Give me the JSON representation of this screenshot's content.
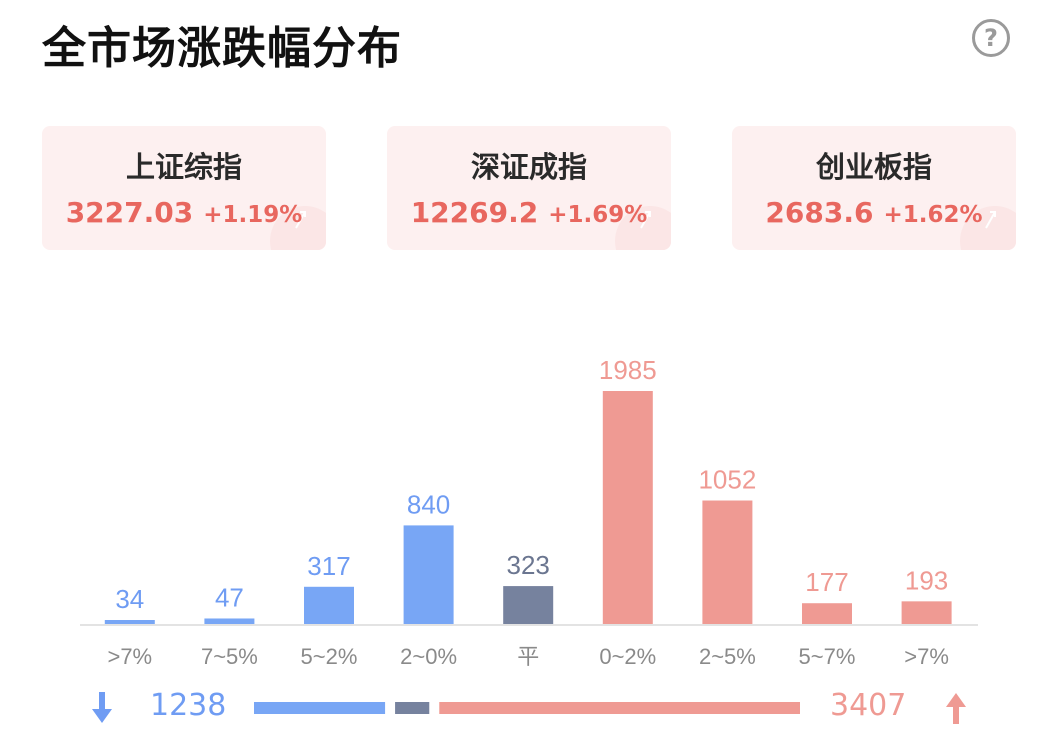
{
  "header": {
    "title": "全市场涨跌幅分布",
    "help_icon": "question-circle-icon",
    "help_glyph": "?"
  },
  "indices": [
    {
      "name": "上证综指",
      "price": "3227.03",
      "change": "+1.19%"
    },
    {
      "name": "深证成指",
      "price": "12269.2",
      "change": "+1.69%"
    },
    {
      "name": "创业板指",
      "price": "2683.6",
      "change": "+1.62%"
    }
  ],
  "colors": {
    "down": "#78a6f5",
    "flat": "#76829e",
    "up": "#ef9a93",
    "index_text": "#e8675f"
  },
  "chart_data": {
    "type": "bar",
    "categories": [
      ">7%",
      "7~5%",
      "5~2%",
      "2~0%",
      "平",
      "0~2%",
      "2~5%",
      "5~7%",
      ">7%"
    ],
    "values": [
      34,
      47,
      317,
      840,
      323,
      1985,
      1052,
      177,
      193
    ],
    "bar_groups": [
      "down",
      "down",
      "down",
      "down",
      "flat",
      "up",
      "up",
      "up",
      "up"
    ],
    "ylim": [
      0,
      1985
    ],
    "grid": false,
    "legend": "none"
  },
  "summary": {
    "down_total": "1238",
    "up_total": "3407",
    "flat_total": 323,
    "down_icon": "arrow-down-icon",
    "up_icon": "arrow-up-icon"
  }
}
